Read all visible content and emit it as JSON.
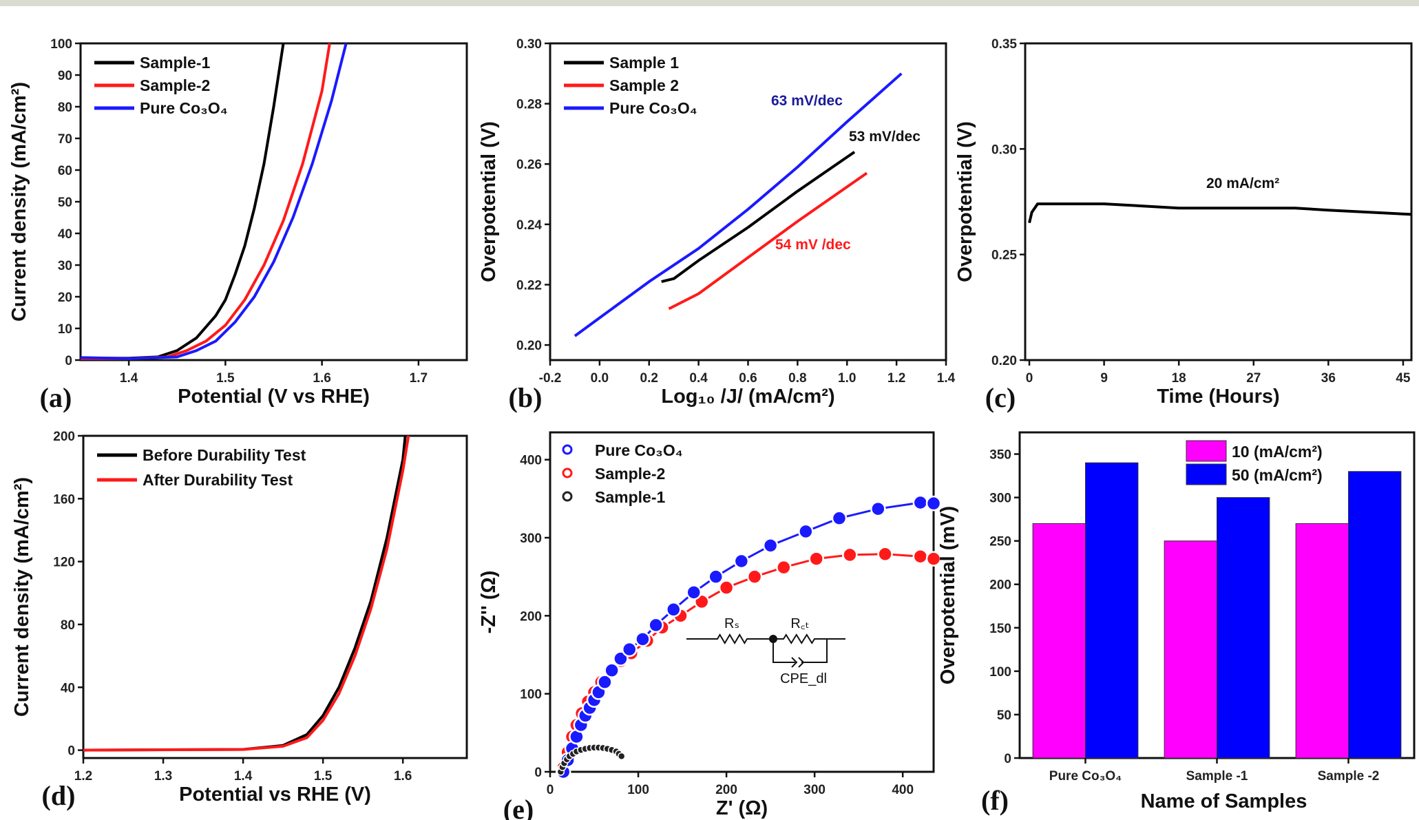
{
  "colors": {
    "black": "#000000",
    "red": "#ff1a1a",
    "blue": "#1a1aff",
    "magenta": "#ff00ff",
    "bar_blue": "#0000ff"
  },
  "chart_data": [
    {
      "panel": "(a)",
      "type": "line",
      "xlabel": "Potential (V vs RHE)",
      "ylabel": "Current density (mA/cm²)",
      "xlim": [
        1.35,
        1.75
      ],
      "ylim": [
        0,
        100
      ],
      "xticks": [
        1.4,
        1.5,
        1.6,
        1.7
      ],
      "yticks": [
        0,
        10,
        20,
        30,
        40,
        50,
        60,
        70,
        80,
        90,
        100
      ],
      "legend": "top-left",
      "series": [
        {
          "name": "Sample-1",
          "color": "#000000",
          "points": [
            [
              1.35,
              0.6
            ],
            [
              1.4,
              0.6
            ],
            [
              1.43,
              1
            ],
            [
              1.45,
              3
            ],
            [
              1.47,
              7
            ],
            [
              1.49,
              14
            ],
            [
              1.5,
              19
            ],
            [
              1.51,
              27
            ],
            [
              1.52,
              36
            ],
            [
              1.53,
              48
            ],
            [
              1.54,
              62
            ],
            [
              1.55,
              80
            ],
            [
              1.56,
              100
            ]
          ]
        },
        {
          "name": "Sample-2",
          "color": "#ff1a1a",
          "points": [
            [
              1.35,
              0.5
            ],
            [
              1.4,
              0.5
            ],
            [
              1.44,
              1
            ],
            [
              1.46,
              3
            ],
            [
              1.48,
              6
            ],
            [
              1.5,
              11
            ],
            [
              1.52,
              19
            ],
            [
              1.54,
              30
            ],
            [
              1.56,
              44
            ],
            [
              1.58,
              62
            ],
            [
              1.6,
              85
            ],
            [
              1.608,
              100
            ]
          ]
        },
        {
          "name": "Pure Co₃O₄",
          "color": "#1a1aff",
          "points": [
            [
              1.35,
              0.8
            ],
            [
              1.4,
              0.5
            ],
            [
              1.45,
              1
            ],
            [
              1.47,
              3
            ],
            [
              1.49,
              6
            ],
            [
              1.51,
              12
            ],
            [
              1.53,
              20
            ],
            [
              1.55,
              31
            ],
            [
              1.57,
              45
            ],
            [
              1.59,
              62
            ],
            [
              1.61,
              82
            ],
            [
              1.625,
              100
            ]
          ]
        }
      ]
    },
    {
      "panel": "(b)",
      "type": "line",
      "xlabel": "Log₁₀ /J/ (mA/cm²)",
      "ylabel": "Overpotential (V)",
      "xlim": [
        -0.2,
        1.4
      ],
      "ylim": [
        0.195,
        0.3
      ],
      "xticks": [
        -0.2,
        0.0,
        0.2,
        0.4,
        0.6,
        0.8,
        1.0,
        1.2,
        1.4
      ],
      "yticks": [
        0.2,
        0.22,
        0.24,
        0.26,
        0.28,
        0.3
      ],
      "legend": "top-left",
      "series": [
        {
          "name": "Sample 1",
          "color": "#000000",
          "points": [
            [
              0.25,
              0.221
            ],
            [
              0.3,
              0.222
            ],
            [
              0.4,
              0.228
            ],
            [
              0.6,
              0.239
            ],
            [
              0.8,
              0.251
            ],
            [
              1.03,
              0.264
            ]
          ]
        },
        {
          "name": "Sample 2",
          "color": "#ff1a1a",
          "points": [
            [
              0.28,
              0.212
            ],
            [
              0.4,
              0.217
            ],
            [
              0.6,
              0.229
            ],
            [
              0.8,
              0.241
            ],
            [
              1.08,
              0.257
            ]
          ]
        },
        {
          "name": "Pure Co₃O₄",
          "color": "#1a1aff",
          "points": [
            [
              -0.1,
              0.203
            ],
            [
              0.0,
              0.209
            ],
            [
              0.2,
              0.221
            ],
            [
              0.4,
              0.232
            ],
            [
              0.6,
              0.245
            ],
            [
              0.8,
              0.259
            ],
            [
              1.0,
              0.274
            ],
            [
              1.22,
              0.29
            ]
          ]
        }
      ],
      "annotations": [
        {
          "text": "63 mV/dec",
          "color": "#1a1a99"
        },
        {
          "text": "53 mV/dec",
          "color": "#111111"
        },
        {
          "text": "54 mV /dec",
          "color": "#ff1a1a"
        }
      ]
    },
    {
      "panel": "(c)",
      "type": "line",
      "xlabel": "Time (Hours)",
      "ylabel": "Overpotential (V)",
      "xlim": [
        -0.5,
        46
      ],
      "ylim": [
        0.2,
        0.35
      ],
      "xticks": [
        0,
        9,
        18,
        27,
        36,
        45
      ],
      "yticks": [
        0.2,
        0.25,
        0.3,
        0.35
      ],
      "series": [
        {
          "color": "#000000",
          "points": [
            [
              0,
              0.265
            ],
            [
              0.3,
              0.27
            ],
            [
              1,
              0.274
            ],
            [
              9,
              0.274
            ],
            [
              18,
              0.272
            ],
            [
              27,
              0.272
            ],
            [
              32,
              0.272
            ],
            [
              36,
              0.271
            ],
            [
              46,
              0.269
            ]
          ]
        }
      ],
      "annotations": [
        {
          "text": "20 mA/cm²",
          "color": "#111111"
        }
      ]
    },
    {
      "panel": "(d)",
      "type": "line",
      "xlabel": "Potential vs RHE (V)",
      "ylabel": "Current density (mA/cm²)",
      "xlim": [
        1.2,
        1.68
      ],
      "ylim": [
        -5,
        200
      ],
      "xticks": [
        1.2,
        1.3,
        1.4,
        1.5,
        1.6
      ],
      "yticks": [
        0,
        40,
        80,
        120,
        160,
        200
      ],
      "legend": "top-left",
      "series": [
        {
          "name": "Before Durability Test",
          "color": "#000000",
          "points": [
            [
              1.2,
              0
            ],
            [
              1.4,
              0.5
            ],
            [
              1.45,
              3
            ],
            [
              1.48,
              10
            ],
            [
              1.5,
              22
            ],
            [
              1.52,
              40
            ],
            [
              1.54,
              65
            ],
            [
              1.56,
              95
            ],
            [
              1.58,
              135
            ],
            [
              1.6,
              185
            ],
            [
              1.603,
              200
            ]
          ]
        },
        {
          "name": "After Durability Test",
          "color": "#ff1a1a",
          "points": [
            [
              1.2,
              0
            ],
            [
              1.4,
              0.4
            ],
            [
              1.45,
              2.5
            ],
            [
              1.48,
              8
            ],
            [
              1.5,
              19
            ],
            [
              1.52,
              36
            ],
            [
              1.54,
              60
            ],
            [
              1.56,
              90
            ],
            [
              1.58,
              128
            ],
            [
              1.6,
              178
            ],
            [
              1.607,
              200
            ]
          ]
        }
      ]
    },
    {
      "panel": "(e)",
      "type": "scatter",
      "xlabel": "Z' (Ω)",
      "ylabel": "-Z'' (Ω)",
      "xlim": [
        0,
        435
      ],
      "ylim": [
        0,
        435
      ],
      "xticks": [
        0,
        100,
        200,
        300,
        400
      ],
      "yticks": [
        0,
        100,
        200,
        300,
        400
      ],
      "legend": "top-left",
      "series": [
        {
          "name": "Pure Co₃O₄",
          "color": "#1a1aff",
          "points": [
            [
              15,
              0
            ],
            [
              20,
              15
            ],
            [
              25,
              30
            ],
            [
              30,
              45
            ],
            [
              35,
              60
            ],
            [
              40,
              72
            ],
            [
              45,
              82
            ],
            [
              50,
              92
            ],
            [
              55,
              102
            ],
            [
              62,
              115
            ],
            [
              70,
              130
            ],
            [
              80,
              145
            ],
            [
              90,
              157
            ],
            [
              105,
              170
            ],
            [
              120,
              188
            ],
            [
              140,
              208
            ],
            [
              163,
              230
            ],
            [
              188,
              250
            ],
            [
              217,
              270
            ],
            [
              250,
              290
            ],
            [
              290,
              308
            ],
            [
              328,
              325
            ],
            [
              372,
              337
            ],
            [
              420,
              345
            ],
            [
              435,
              344
            ]
          ]
        },
        {
          "name": "Sample-2",
          "color": "#ff1a1a",
          "points": [
            [
              15,
              5
            ],
            [
              20,
              25
            ],
            [
              25,
              45
            ],
            [
              30,
              60
            ],
            [
              36,
              75
            ],
            [
              43,
              90
            ],
            [
              50,
              102
            ],
            [
              58,
              115
            ],
            [
              68,
              130
            ],
            [
              80,
              142
            ],
            [
              92,
              152
            ],
            [
              110,
              168
            ],
            [
              127,
              185
            ],
            [
              148,
              200
            ],
            [
              172,
              218
            ],
            [
              200,
              236
            ],
            [
              232,
              250
            ],
            [
              265,
              262
            ],
            [
              302,
              273
            ],
            [
              340,
              278
            ],
            [
              380,
              279
            ],
            [
              420,
              276
            ],
            [
              435,
              273
            ]
          ]
        },
        {
          "name": "Sample-1",
          "color": "#222222",
          "points": [
            [
              12,
              0
            ],
            [
              14,
              6
            ],
            [
              16,
              11
            ],
            [
              19,
              16
            ],
            [
              22,
              20
            ],
            [
              26,
              23
            ],
            [
              30,
              26
            ],
            [
              35,
              28
            ],
            [
              40,
              29.5
            ],
            [
              45,
              30.5
            ],
            [
              50,
              31
            ],
            [
              55,
              31
            ],
            [
              60,
              30.5
            ],
            [
              65,
              29.5
            ],
            [
              70,
              28
            ],
            [
              75,
              26
            ],
            [
              78,
              23
            ],
            [
              81,
              20
            ]
          ]
        }
      ],
      "inset_circuit": {
        "rs": "Rₛ",
        "rct": "R꜀ₜ",
        "cpe": "CPE_dl"
      }
    },
    {
      "panel": "(f)",
      "type": "bar",
      "xlabel": "Name of Samples",
      "ylabel": "Overpotential (mV)",
      "ylim": [
        0,
        375
      ],
      "yticks": [
        0,
        50,
        100,
        150,
        200,
        250,
        300,
        350
      ],
      "categories": [
        "Pure Co₃O₄",
        "Sample -1",
        "Sample -2"
      ],
      "legend": "top-right",
      "series": [
        {
          "name": "10 (mA/cm²)",
          "color": "#ff00ff",
          "values": [
            270,
            250,
            270
          ]
        },
        {
          "name": "50 (mA/cm²)",
          "color": "#0000ff",
          "values": [
            340,
            300,
            330
          ]
        }
      ]
    }
  ]
}
